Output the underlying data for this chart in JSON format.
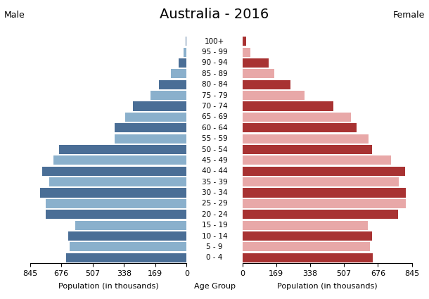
{
  "title": "Australia - 2016",
  "male_label": "Male",
  "female_label": "Female",
  "xlabel_left": "Population (in thousands)",
  "xlabel_center": "Age Group",
  "xlabel_right": "Population (in thousands)",
  "age_groups": [
    "0 - 4",
    "5 - 9",
    "10 - 14",
    "15 - 19",
    "20 - 24",
    "25 - 29",
    "30 - 34",
    "35 - 39",
    "40 - 44",
    "45 - 49",
    "50 - 54",
    "55 - 59",
    "60 - 64",
    "65 - 69",
    "70 - 74",
    "75 - 79",
    "80 - 84",
    "85 - 89",
    "90 - 94",
    "95 - 99",
    "100+"
  ],
  "male_values": [
    650,
    630,
    640,
    600,
    760,
    760,
    790,
    740,
    780,
    720,
    690,
    390,
    390,
    330,
    290,
    195,
    148,
    85,
    42,
    18,
    5
  ],
  "female_values": [
    650,
    635,
    645,
    625,
    775,
    815,
    815,
    780,
    810,
    740,
    645,
    630,
    570,
    540,
    455,
    310,
    240,
    160,
    130,
    40,
    18
  ],
  "male_dark": "#4a6e96",
  "male_light": "#8ab0cc",
  "female_dark": "#a83232",
  "female_light": "#e8a8a8",
  "xlim": 845,
  "xticks": [
    0,
    169,
    338,
    507,
    676,
    845
  ],
  "background_color": "#ffffff",
  "title_fontsize": 14,
  "label_fontsize": 7.5,
  "axis_fontsize": 8
}
